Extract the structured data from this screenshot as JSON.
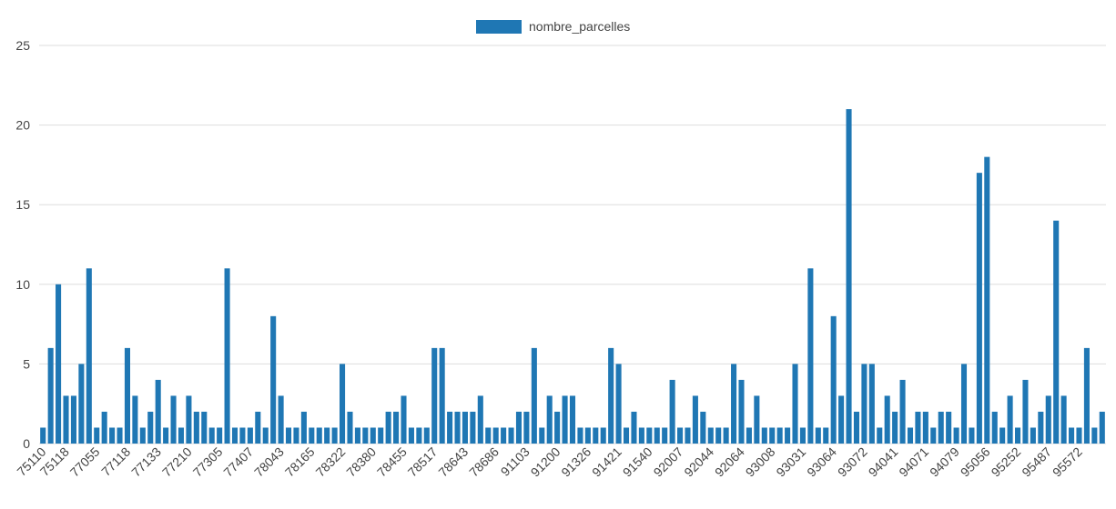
{
  "chart_data": {
    "type": "bar",
    "legend": {
      "label": "nombre_parcelles",
      "position": "top",
      "color": "#1f77b4"
    },
    "ylim": [
      0,
      25
    ],
    "yticks": [
      0,
      5,
      10,
      15,
      20,
      25
    ],
    "grid": true,
    "x_tick_labels": [
      "75110",
      "75118",
      "77055",
      "77118",
      "77133",
      "77210",
      "77305",
      "77407",
      "78043",
      "78165",
      "78322",
      "78380",
      "78455",
      "78517",
      "78643",
      "78686",
      "91103",
      "91200",
      "91326",
      "91421",
      "91540",
      "92007",
      "92044",
      "92064",
      "93008",
      "93031",
      "93064",
      "93072",
      "94041",
      "94071",
      "94079",
      "95056",
      "95252",
      "95487",
      "95572"
    ],
    "series": [
      {
        "name": "nombre_parcelles",
        "color": "#1f77b4",
        "values": [
          1,
          6,
          10,
          3,
          3,
          5,
          11,
          1,
          2,
          1,
          1,
          6,
          3,
          1,
          2,
          4,
          1,
          3,
          1,
          3,
          2,
          2,
          1,
          1,
          11,
          1,
          1,
          1,
          2,
          1,
          8,
          3,
          1,
          1,
          2,
          1,
          1,
          1,
          1,
          5,
          2,
          1,
          1,
          1,
          1,
          2,
          2,
          3,
          1,
          1,
          1,
          6,
          6,
          2,
          2,
          2,
          2,
          3,
          1,
          1,
          1,
          1,
          2,
          2,
          6,
          1,
          3,
          2,
          3,
          3,
          1,
          1,
          1,
          1,
          6,
          5,
          1,
          2,
          1,
          1,
          1,
          1,
          4,
          1,
          1,
          3,
          2,
          1,
          1,
          1,
          5,
          4,
          1,
          3,
          1,
          1,
          1,
          1,
          5,
          1,
          11,
          1,
          1,
          8,
          3,
          21,
          2,
          5,
          5,
          1,
          3,
          2,
          4,
          1,
          2,
          2,
          1,
          2,
          2,
          1,
          5,
          1,
          17,
          18,
          2,
          1,
          3,
          1,
          4,
          1,
          2,
          3,
          14,
          3,
          1,
          1,
          6,
          1,
          2
        ]
      }
    ]
  }
}
